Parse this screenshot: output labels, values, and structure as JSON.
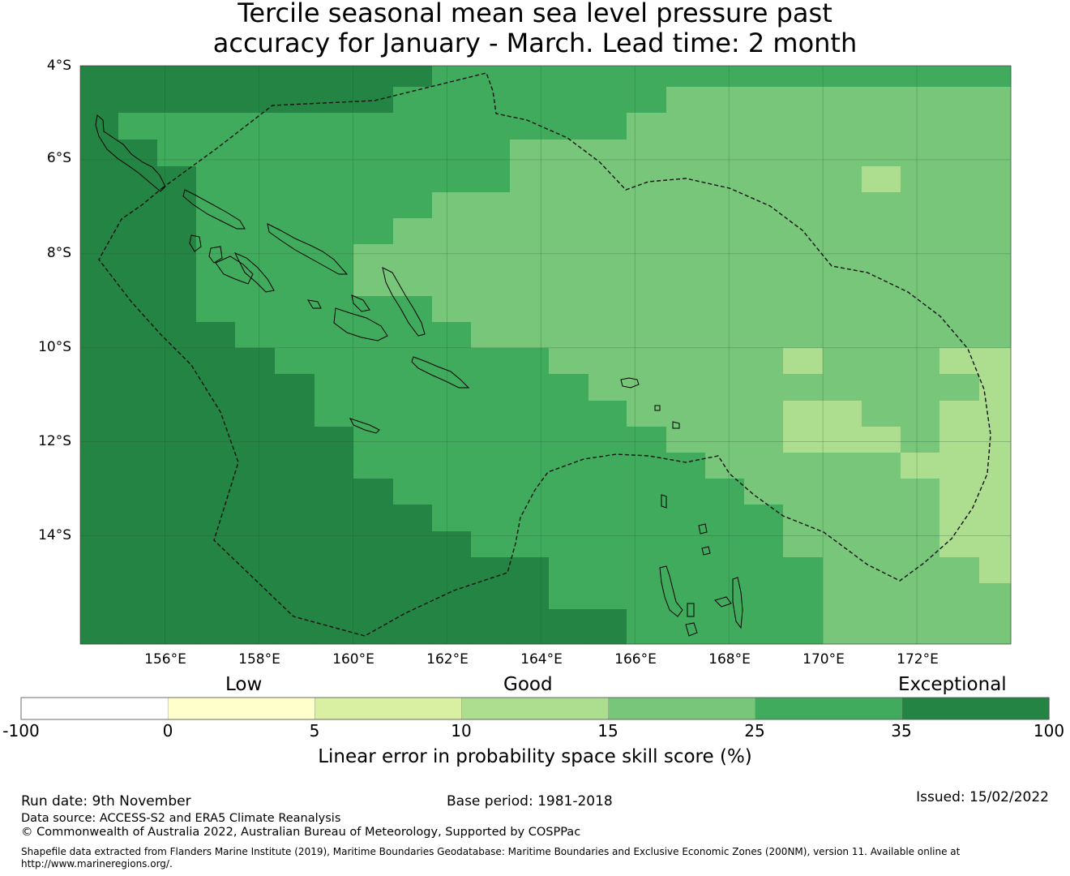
{
  "title": {
    "line1": "Tercile seasonal mean sea level pressure past",
    "line2": "accuracy for January - March. Lead time: 2 month"
  },
  "map": {
    "lat_labels": [
      "4°S",
      "6°S",
      "8°S",
      "10°S",
      "12°S",
      "14°S"
    ],
    "lon_labels": [
      "156°E",
      "158°E",
      "160°E",
      "162°E",
      "164°E",
      "166°E",
      "168°E",
      "170°E",
      "172°E"
    ],
    "lon_range": [
      154.2,
      174.0
    ],
    "lat_range": [
      -16.3,
      -4.0
    ],
    "grid_lons": [
      156,
      158,
      160,
      162,
      164,
      166,
      168,
      170,
      172
    ],
    "grid_lats": [
      -4,
      -6,
      -8,
      -10,
      -12,
      -14
    ],
    "boundary_style": "dashed",
    "grid": true
  },
  "colorbar": {
    "category_labels": [
      "Low",
      "Good",
      "Exceptional"
    ],
    "tick_labels": [
      "-100",
      "0",
      "5",
      "10",
      "15",
      "25",
      "35",
      "100"
    ],
    "bins": [
      {
        "from": -100,
        "to": 0,
        "color": "#ffffff"
      },
      {
        "from": 0,
        "to": 5,
        "color": "#ffffcc"
      },
      {
        "from": 5,
        "to": 10,
        "color": "#d9f0a3"
      },
      {
        "from": 10,
        "to": 15,
        "color": "#addd8e"
      },
      {
        "from": 15,
        "to": 25,
        "color": "#78c679"
      },
      {
        "from": 25,
        "to": 35,
        "color": "#41ab5d"
      },
      {
        "from": 35,
        "to": 100,
        "color": "#238443"
      }
    ],
    "title": "Linear error in probability space skill score (%)"
  },
  "footer": {
    "run_date": "Run date: 9th November",
    "base_period": "Base period: 1981-2018",
    "issued": "Issued: 15/02/2022",
    "data_source": "Data source: ACCESS-S2 and ERA5 Climate Reanalysis",
    "copyright": "© Commonwealth of Australia 2022, Australian Bureau of Meteorology, Supported by COSPPac",
    "shapefile": "Shapefile data extracted from Flanders Marine Institute (2019), Maritime Boundaries Geodatabase: Maritime Boundaries and Exclusive Economic Zones (200NM), version 11. Available online at http://www.marineregions.org/."
  }
}
